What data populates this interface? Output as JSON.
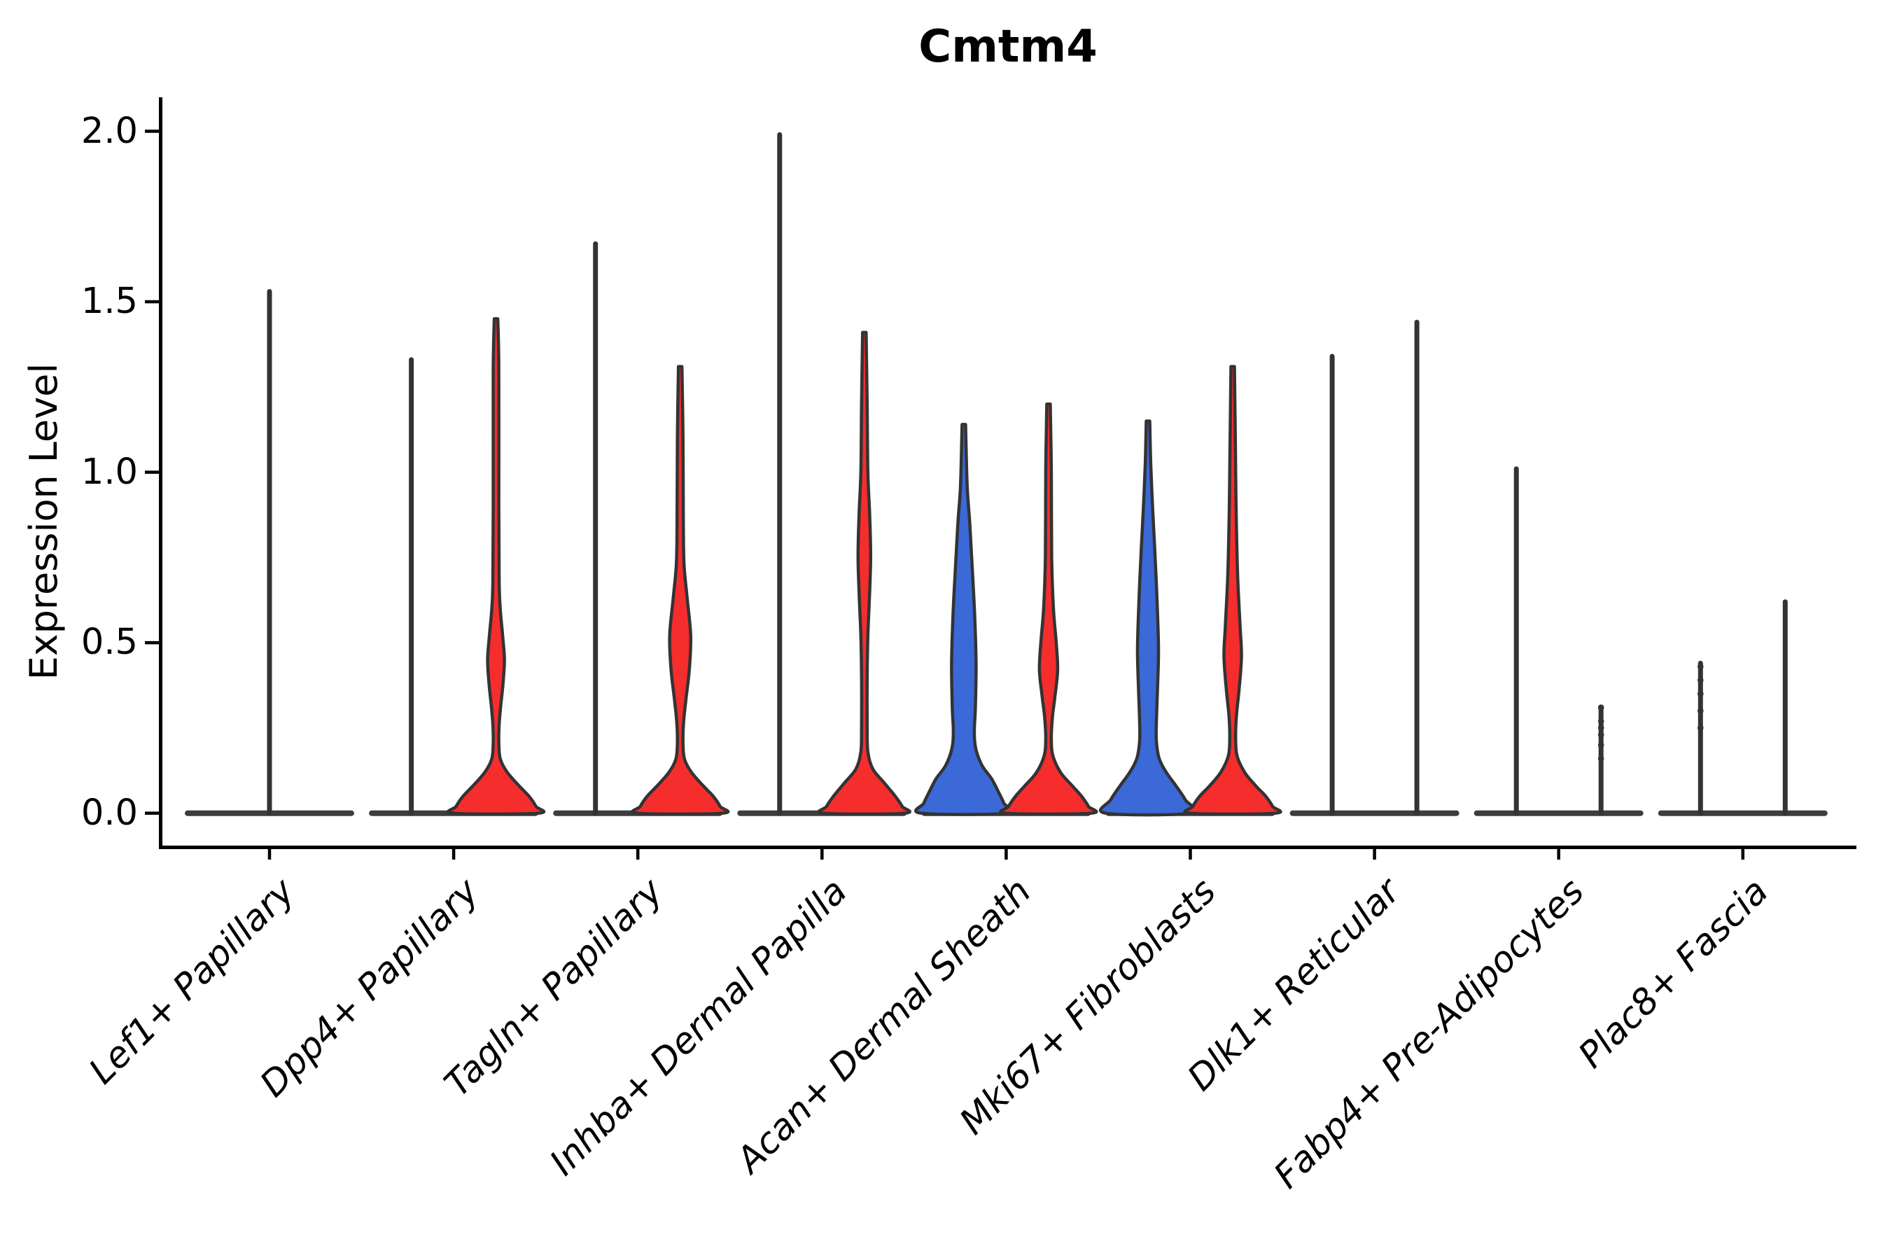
{
  "title": "Cmtm4",
  "axes": {
    "ylabel": "Expression Level",
    "ytick_labels": [
      "0.0",
      "0.5",
      "1.0",
      "1.5",
      "2.0"
    ]
  },
  "palette": {
    "red": "#F62D2D",
    "blue": "#3B69D8",
    "outline": "#333333",
    "baseline_bar": "#3D3D3D",
    "ink": "#000000",
    "background": "#FFFFFF"
  },
  "chart_data": {
    "type": "violin",
    "title": "Cmtm4",
    "xlabel": "",
    "ylabel": "Expression Level",
    "ylim": [
      0,
      2.07
    ],
    "yticks": [
      0,
      0.5,
      1,
      1.5,
      2
    ],
    "ytick_labels": [
      "0.0",
      "0.5",
      "1.0",
      "1.5",
      "2.0"
    ],
    "grid": false,
    "legend": "none",
    "split_colors": {
      "left_group": "#3B69D8",
      "right_group": "#F62D2D"
    },
    "categories": [
      "Lef1+ Papillary",
      "Dpp4+ Papillary",
      "Tagln+ Papillary",
      "Inhba+ Dermal Papilla",
      "Acan+ Dermal Sheath",
      "Mki67+ Fibroblasts",
      "Dlk1+ Reticular",
      "Fabp4+ Pre-Adipocytes",
      "Plac8+ Fascia"
    ],
    "cells": [
      {
        "category": "Lef1+ Papillary",
        "violins": [
          {
            "pos": "center",
            "style": "spike",
            "max": 1.53
          }
        ]
      },
      {
        "category": "Dpp4+ Papillary",
        "violins": [
          {
            "pos": "left",
            "style": "spike",
            "max": 1.33
          },
          {
            "pos": "right",
            "style": "violin",
            "color": "red",
            "max": 1.45,
            "profile": [
              [
                1.45,
                2.5
              ],
              [
                1.3,
                4
              ],
              [
                0.9,
                4
              ],
              [
                0.68,
                4.5
              ],
              [
                0.6,
                6
              ],
              [
                0.52,
                9.5
              ],
              [
                0.45,
                12
              ],
              [
                0.38,
                10
              ],
              [
                0.31,
                6.5
              ],
              [
                0.26,
                4.5
              ],
              [
                0.21,
                4
              ],
              [
                0.16,
                6
              ],
              [
                0.12,
                16
              ],
              [
                0.08,
                33
              ],
              [
                0.05,
                47
              ],
              [
                0.02,
                57
              ],
              [
                0,
                60
              ]
            ]
          }
        ]
      },
      {
        "category": "Tagln+ Papillary",
        "violins": [
          {
            "pos": "left",
            "style": "spike",
            "max": 1.67
          },
          {
            "pos": "right",
            "style": "violin",
            "color": "red",
            "max": 1.31,
            "profile": [
              [
                1.31,
                2.5
              ],
              [
                1.1,
                4
              ],
              [
                0.85,
                4.5
              ],
              [
                0.73,
                5.5
              ],
              [
                0.63,
                10
              ],
              [
                0.52,
                15
              ],
              [
                0.42,
                13
              ],
              [
                0.33,
                8
              ],
              [
                0.27,
                5
              ],
              [
                0.21,
                4
              ],
              [
                0.16,
                6
              ],
              [
                0.12,
                16
              ],
              [
                0.08,
                33
              ],
              [
                0.05,
                47
              ],
              [
                0.02,
                57
              ],
              [
                0,
                60
              ]
            ]
          }
        ]
      },
      {
        "category": "Inhba+ Dermal Papilla",
        "violins": [
          {
            "pos": "left",
            "style": "spike",
            "max": 1.99
          },
          {
            "pos": "right",
            "style": "violin",
            "color": "red",
            "max": 1.41,
            "profile": [
              [
                1.41,
                2.5
              ],
              [
                1.2,
                4
              ],
              [
                1.0,
                5
              ],
              [
                0.88,
                7.5
              ],
              [
                0.75,
                9
              ],
              [
                0.62,
                7
              ],
              [
                0.52,
                5
              ],
              [
                0.4,
                4
              ],
              [
                0.25,
                4
              ],
              [
                0.18,
                5
              ],
              [
                0.13,
                12
              ],
              [
                0.09,
                28
              ],
              [
                0.05,
                44
              ],
              [
                0.02,
                54
              ],
              [
                0,
                57
              ]
            ]
          }
        ]
      },
      {
        "category": "Acan+ Dermal Sheath",
        "violins": [
          {
            "pos": "left",
            "style": "violin",
            "color": "blue",
            "max": 1.14,
            "profile": [
              [
                1.14,
                2.5
              ],
              [
                1.05,
                3.5
              ],
              [
                0.95,
                5
              ],
              [
                0.85,
                8.5
              ],
              [
                0.72,
                12
              ],
              [
                0.58,
                15.5
              ],
              [
                0.44,
                17.5
              ],
              [
                0.31,
                16.5
              ],
              [
                0.24,
                15
              ],
              [
                0.19,
                17
              ],
              [
                0.14,
                26
              ],
              [
                0.1,
                40
              ],
              [
                0.06,
                50
              ],
              [
                0.03,
                57
              ],
              [
                0,
                60.5
              ]
            ],
            "dots": []
          },
          {
            "pos": "right",
            "style": "violin",
            "color": "red",
            "max": 1.2,
            "profile": [
              [
                1.2,
                2.5
              ],
              [
                1.0,
                4
              ],
              [
                0.75,
                4.5
              ],
              [
                0.6,
                7
              ],
              [
                0.5,
                11
              ],
              [
                0.42,
                13
              ],
              [
                0.34,
                9
              ],
              [
                0.28,
                5.5
              ],
              [
                0.22,
                4
              ],
              [
                0.17,
                6
              ],
              [
                0.12,
                17
              ],
              [
                0.08,
                34
              ],
              [
                0.05,
                47
              ],
              [
                0.02,
                57
              ],
              [
                0,
                60
              ]
            ]
          }
        ]
      },
      {
        "category": "Mki67+ Fibroblasts",
        "violins": [
          {
            "pos": "left",
            "style": "violin",
            "color": "blue",
            "max": 1.15,
            "profile": [
              [
                1.15,
                2.5
              ],
              [
                1.02,
                4
              ],
              [
                0.9,
                6.5
              ],
              [
                0.78,
                9.5
              ],
              [
                0.62,
                13
              ],
              [
                0.48,
                15
              ],
              [
                0.36,
                13.5
              ],
              [
                0.27,
                12
              ],
              [
                0.21,
                12
              ],
              [
                0.16,
                16
              ],
              [
                0.12,
                26
              ],
              [
                0.08,
                40
              ],
              [
                0.04,
                53
              ],
              [
                0,
                60.5
              ]
            ]
          },
          {
            "pos": "right",
            "style": "violin",
            "color": "red",
            "max": 1.31,
            "profile": [
              [
                1.31,
                2.5
              ],
              [
                1.05,
                4
              ],
              [
                0.88,
                5
              ],
              [
                0.7,
                7
              ],
              [
                0.55,
                10.5
              ],
              [
                0.46,
                12.5
              ],
              [
                0.36,
                9
              ],
              [
                0.29,
                5.5
              ],
              [
                0.23,
                4.2
              ],
              [
                0.17,
                6
              ],
              [
                0.12,
                17
              ],
              [
                0.08,
                33
              ],
              [
                0.05,
                47
              ],
              [
                0.02,
                57
              ],
              [
                0,
                60
              ]
            ]
          }
        ]
      },
      {
        "category": "Dlk1+ Reticular",
        "violins": [
          {
            "pos": "left",
            "style": "spike",
            "max": 1.34
          },
          {
            "pos": "right",
            "style": "spike",
            "max": 1.44
          }
        ]
      },
      {
        "category": "Fabp4+ Pre-Adipocytes",
        "violins": [
          {
            "pos": "left",
            "style": "spike",
            "max": 1.01
          },
          {
            "pos": "right",
            "style": "spike",
            "max": 0.31,
            "dots": [
              0.31,
              0.27,
              0.25,
              0.23,
              0.2,
              0.16
            ]
          }
        ]
      },
      {
        "category": "Plac8+ Fascia",
        "violins": [
          {
            "pos": "left",
            "style": "spike",
            "max": 0.44,
            "dots": [
              0.43,
              0.39,
              0.35,
              0.3,
              0.25
            ]
          },
          {
            "pos": "right",
            "style": "spike",
            "max": 0.62
          }
        ]
      }
    ]
  }
}
